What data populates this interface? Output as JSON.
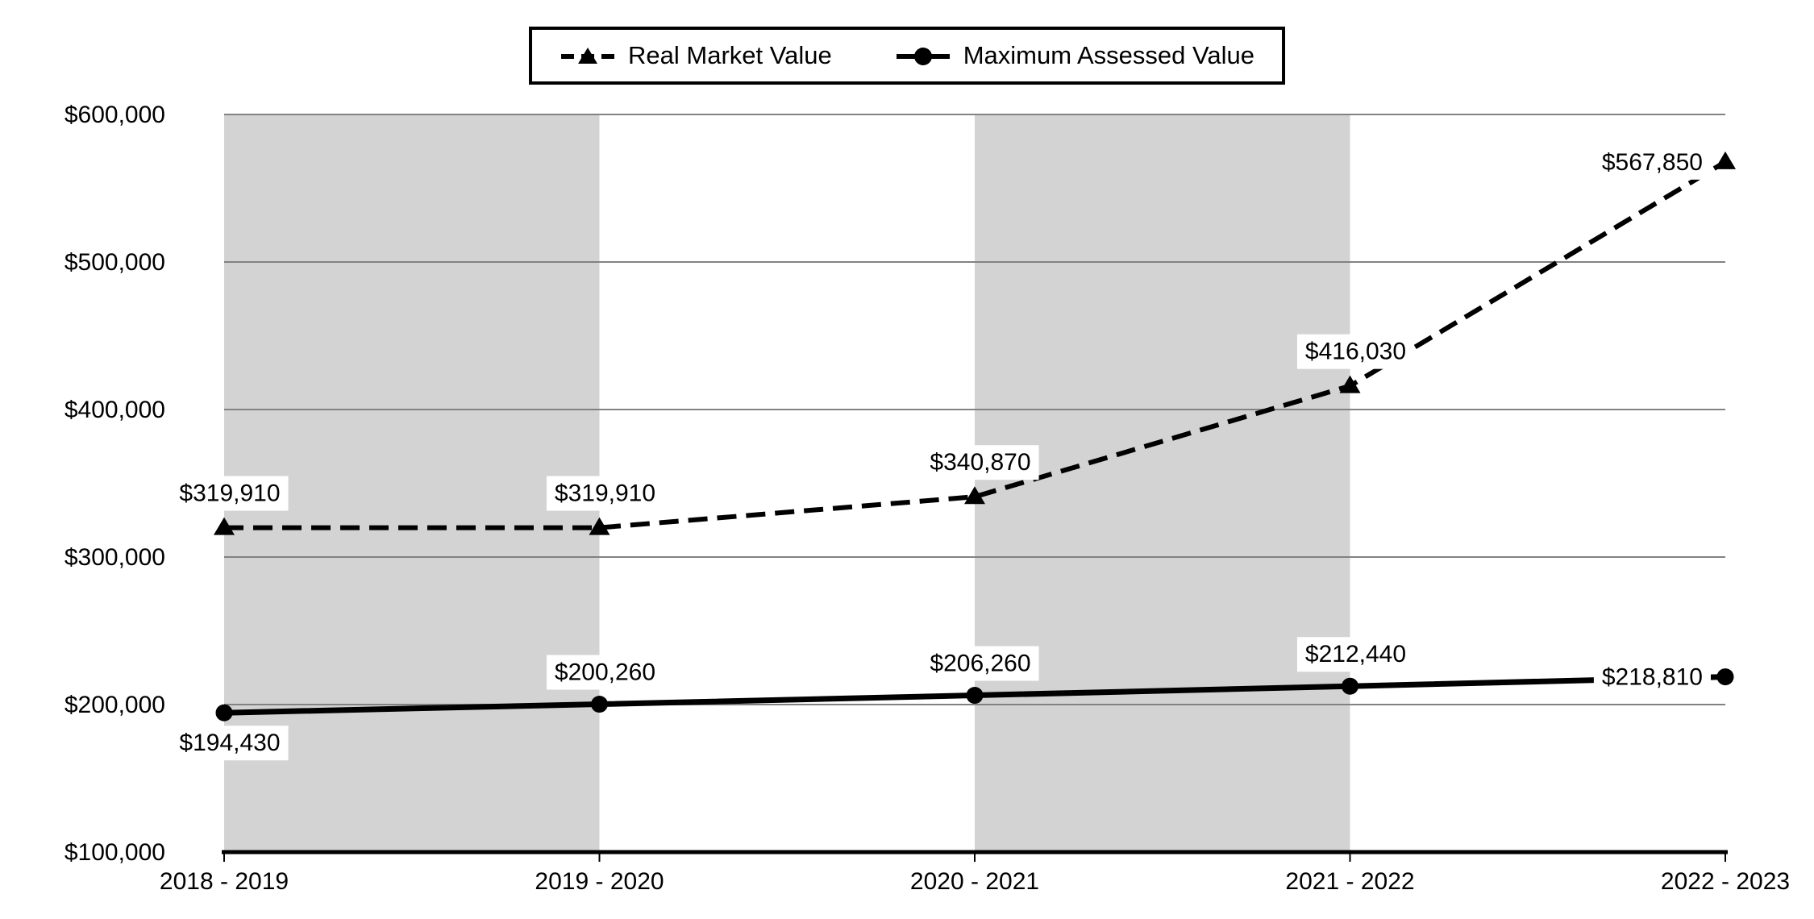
{
  "chart_data": {
    "type": "line",
    "title": "",
    "categories": [
      "2018 - 2019",
      "2019 - 2020",
      "2020 - 2021",
      "2021 - 2022",
      "2022 - 2023"
    ],
    "series": [
      {
        "name": "Real Market Value",
        "line_style": "dashed",
        "marker": "triangle",
        "values": [
          319910,
          319910,
          340870,
          416030,
          567850
        ],
        "data_labels": [
          "$319,910",
          "$319,910",
          "$340,870",
          "$416,030",
          "$567,850"
        ],
        "label_placements": [
          "above",
          "above",
          "above",
          "above",
          "left"
        ]
      },
      {
        "name": "Maximum Assessed Value",
        "line_style": "solid",
        "marker": "circle",
        "values": [
          194430,
          200260,
          206260,
          212440,
          218810
        ],
        "data_labels": [
          "$194,430",
          "$200,260",
          "$206,260",
          "$212,440",
          "$218,810"
        ],
        "label_placements": [
          "below",
          "above",
          "above",
          "above",
          "left"
        ]
      }
    ],
    "xlabel": "",
    "ylabel": "",
    "ylim": [
      100000,
      600000
    ],
    "ytick_step": 100000,
    "ytick_labels": [
      "$100,000",
      "$200,000",
      "$300,000",
      "$400,000",
      "$500,000",
      "$600,000"
    ],
    "grid": true,
    "legend_position": "top-center",
    "shaded_bands": {
      "between_category_indices": [
        [
          0,
          1
        ],
        [
          2,
          3
        ]
      ]
    },
    "colors": {
      "series_line": "#000000",
      "text": "#000000",
      "gridline": "#828282",
      "axis": "#000000",
      "plot_band": "#d3d3d3",
      "label_background": "#ffffff",
      "legend_border": "#000000",
      "background": "#ffffff"
    }
  }
}
